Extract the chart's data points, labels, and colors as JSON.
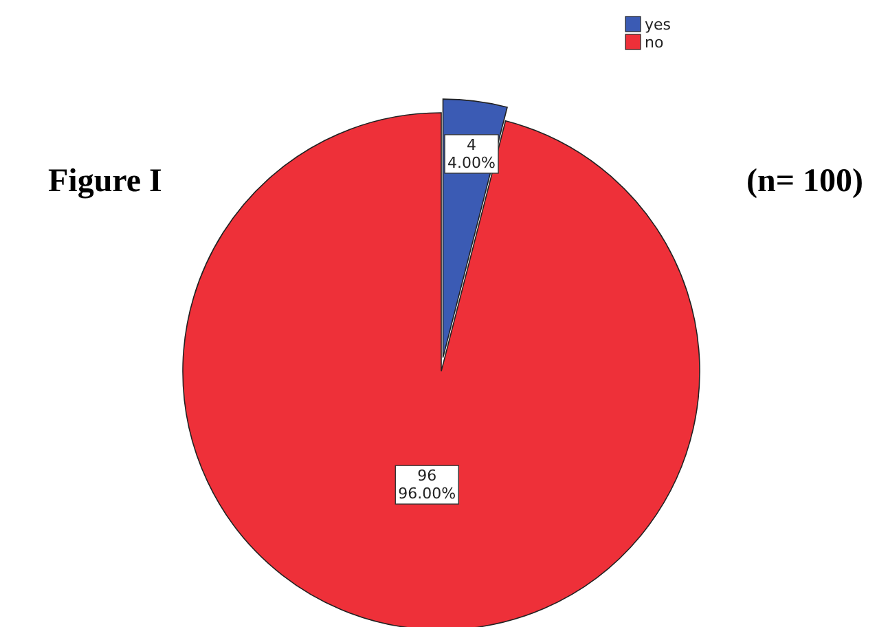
{
  "chart_data": {
    "type": "pie",
    "title": "Figure I",
    "annotations": [
      "(n= 100)"
    ],
    "categories": [
      "yes",
      "no"
    ],
    "values": [
      4,
      96
    ],
    "colors": [
      "#3b5bb4",
      "#ee3039"
    ],
    "value_labels": [
      "4\n4.00%",
      "96\n96.00%"
    ],
    "legend": "top right"
  }
}
